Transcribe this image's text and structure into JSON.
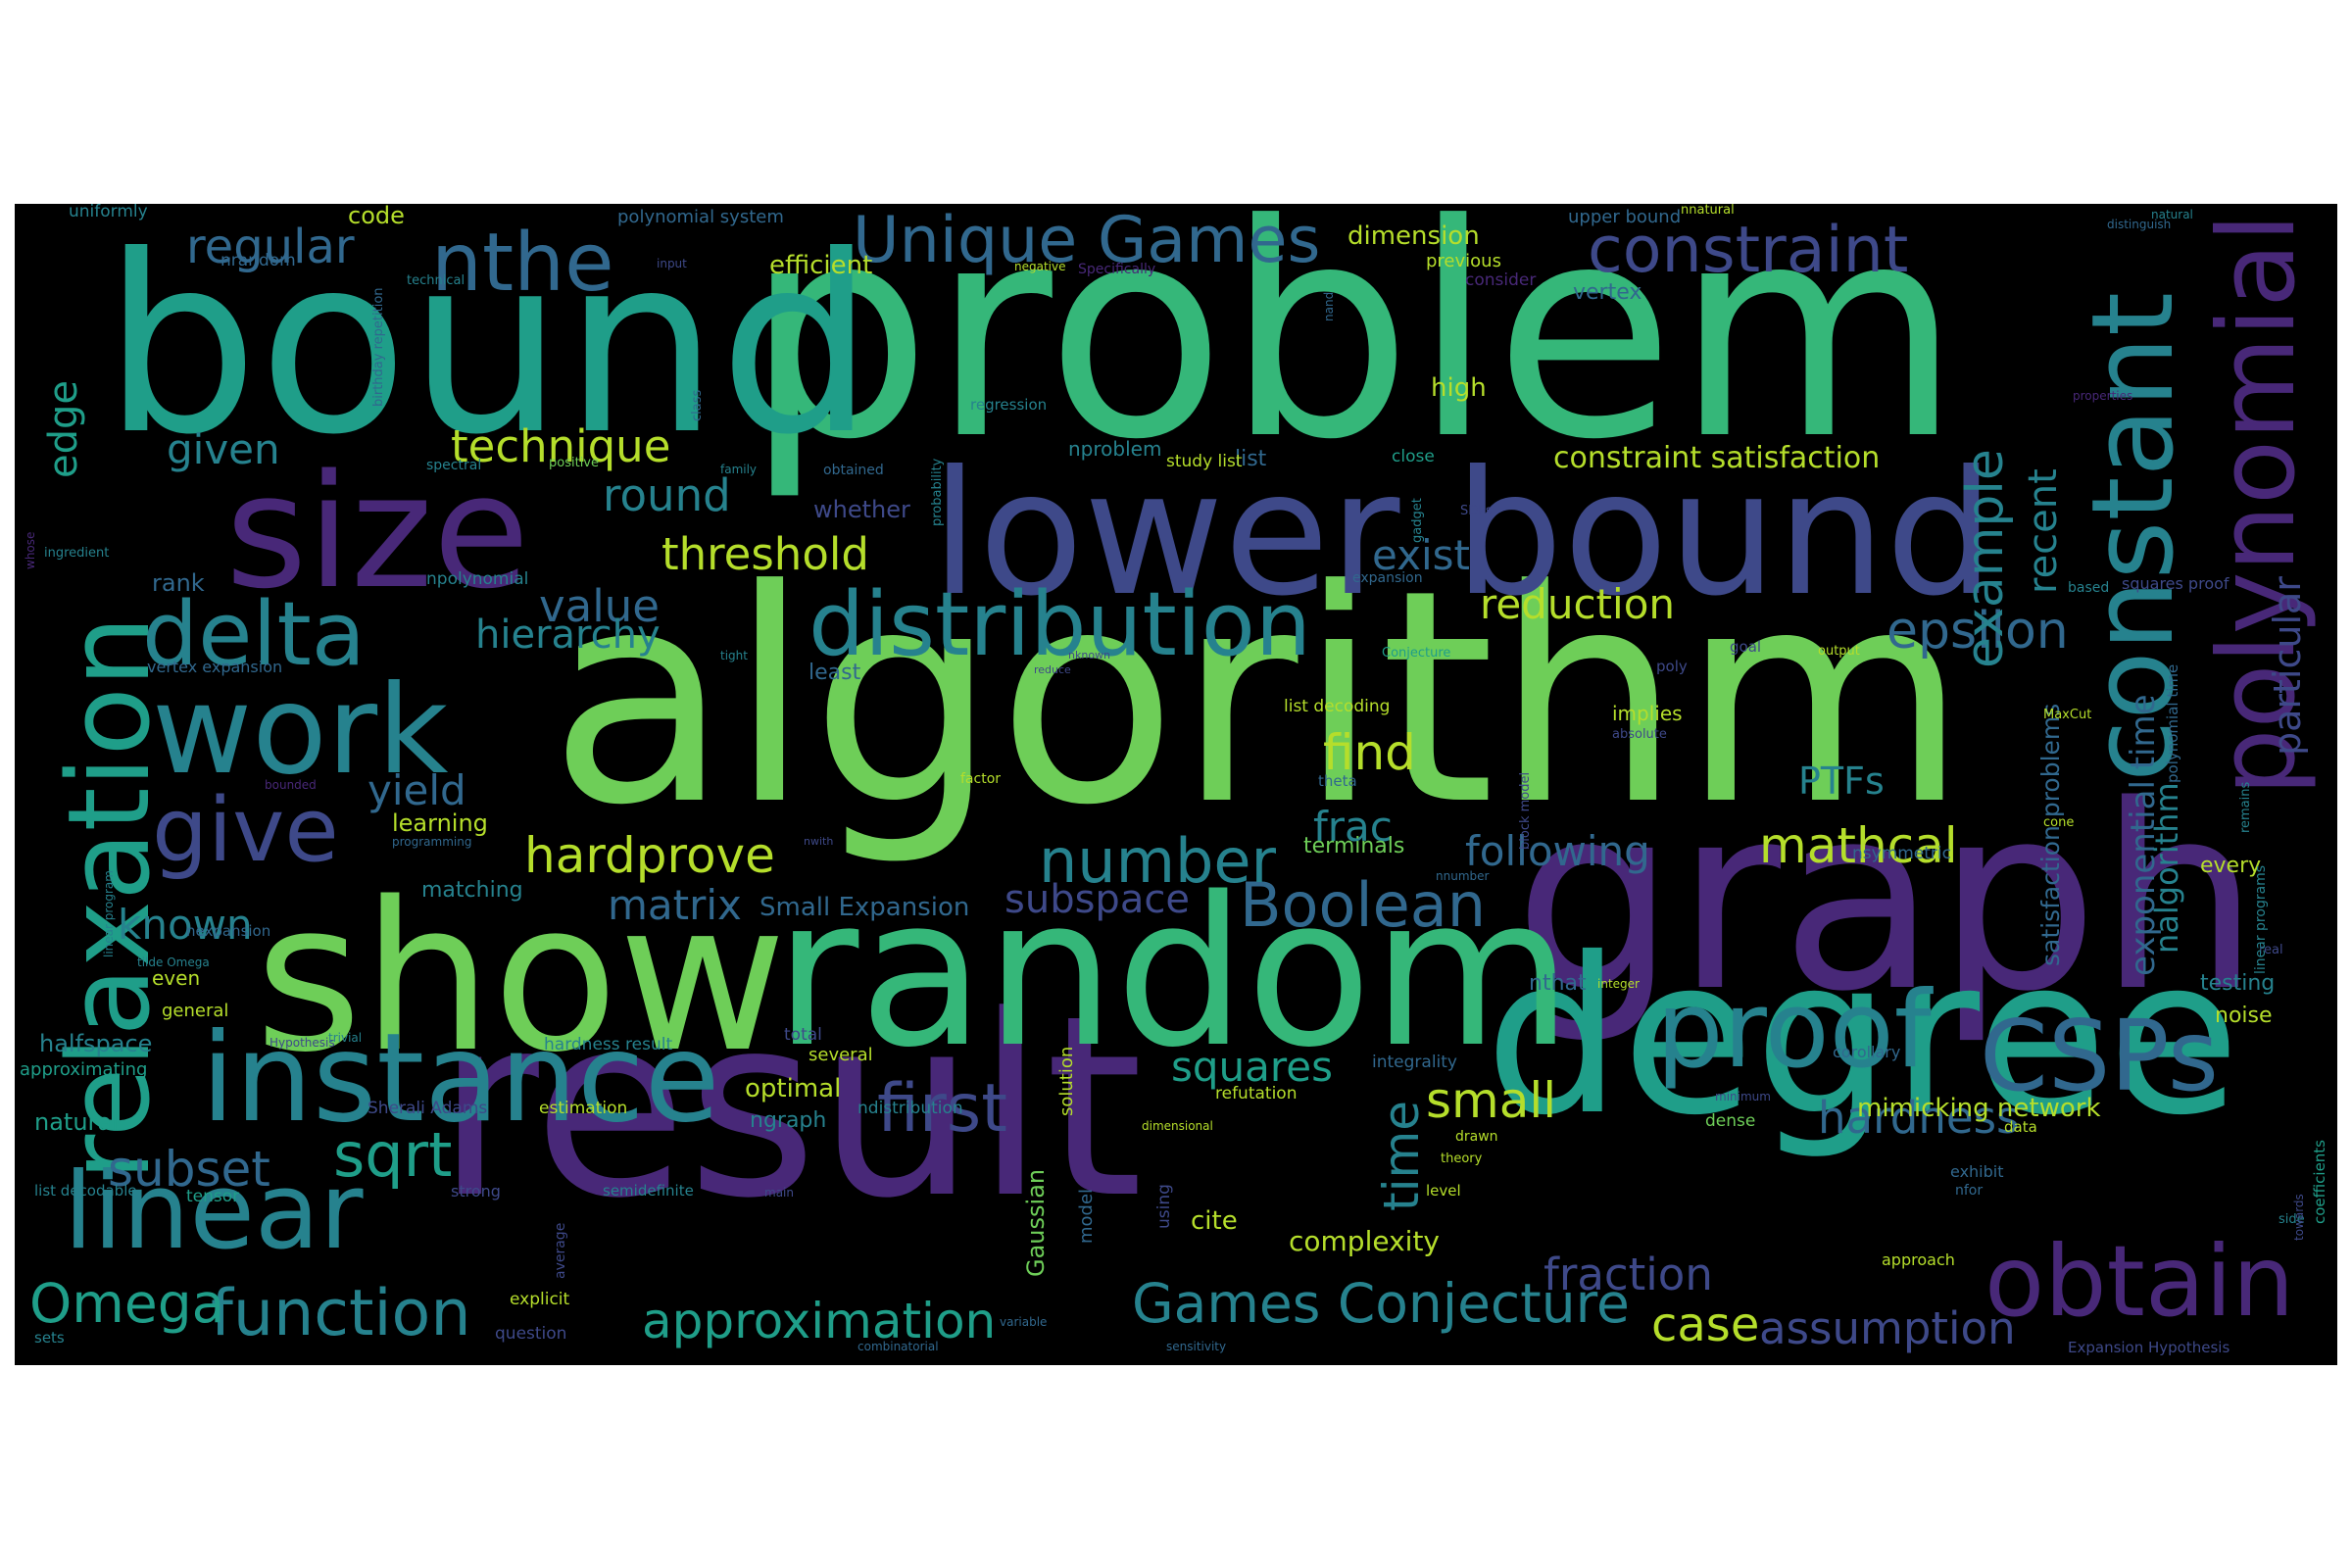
{
  "palette": {
    "background": "#000000",
    "figure_background": "#ffffff",
    "colors": [
      "#440154",
      "#482878",
      "#3e4989",
      "#31688e",
      "#26828e",
      "#1f9e89",
      "#35b779",
      "#6ece58",
      "#b5de2b"
    ]
  },
  "words": [
    {
      "text": "problem",
      "size": 1.0,
      "color": "#35b779"
    },
    {
      "text": "algorithm",
      "size": 0.96,
      "color": "#6ece58"
    },
    {
      "text": "graph",
      "size": 0.82,
      "color": "#482878"
    },
    {
      "text": "result",
      "size": 0.8,
      "color": "#482878"
    },
    {
      "text": "bound",
      "size": 0.78,
      "color": "#1f9e89"
    },
    {
      "text": "degree",
      "size": 0.7,
      "color": "#1f9e89"
    },
    {
      "text": "random",
      "size": 0.68,
      "color": "#35b779"
    },
    {
      "text": "show",
      "size": 0.68,
      "color": "#6ece58"
    },
    {
      "text": "lower bound",
      "size": 0.55,
      "color": "#3e4989"
    },
    {
      "text": "size",
      "size": 0.5,
      "color": "#482878"
    },
    {
      "text": "instance",
      "size": 0.4,
      "color": "#26828e"
    },
    {
      "text": "work",
      "size": 0.4,
      "color": "#26828e"
    },
    {
      "text": "relaxation",
      "size": 0.36,
      "color": "#1f9e89"
    },
    {
      "text": "constant",
      "size": 0.36,
      "color": "#26828e"
    },
    {
      "text": "polynomial",
      "size": 0.34,
      "color": "#482878"
    },
    {
      "text": "proof",
      "size": 0.34,
      "color": "#26828e"
    },
    {
      "text": "linear",
      "size": 0.34,
      "color": "#26828e"
    },
    {
      "text": "CSPs",
      "size": 0.32,
      "color": "#31688e"
    },
    {
      "text": "obtain",
      "size": 0.32,
      "color": "#482878"
    },
    {
      "text": "distribution",
      "size": 0.28,
      "color": "#26828e"
    },
    {
      "text": "delta",
      "size": 0.28,
      "color": "#26828e"
    },
    {
      "text": "give",
      "size": 0.28,
      "color": "#3e4989"
    },
    {
      "text": "nthe",
      "size": 0.26,
      "color": "#31688e"
    },
    {
      "text": "first",
      "size": 0.22,
      "color": "#3e4989"
    },
    {
      "text": "function",
      "size": 0.22,
      "color": "#26828e"
    },
    {
      "text": "Unique Games",
      "size": 0.22,
      "color": "#31688e"
    },
    {
      "text": "constraint",
      "size": 0.22,
      "color": "#3e4989"
    },
    {
      "text": "sqrt",
      "size": 0.22,
      "color": "#1f9e89"
    },
    {
      "text": "Boolean",
      "size": 0.22,
      "color": "#31688e"
    },
    {
      "text": "number",
      "size": 0.22,
      "color": "#26828e"
    },
    {
      "text": "Games Conjecture",
      "size": 0.2,
      "color": "#26828e"
    },
    {
      "text": "Omega",
      "size": 0.2,
      "color": "#1f9e89"
    },
    {
      "text": "approximation",
      "size": 0.18,
      "color": "#1f9e89"
    },
    {
      "text": "mathcal",
      "size": 0.18,
      "color": "#b5de2b"
    },
    {
      "text": "hardprove",
      "size": 0.18,
      "color": "#b5de2b"
    },
    {
      "text": "subset",
      "size": 0.18,
      "color": "#31688e"
    },
    {
      "text": "time",
      "size": 0.18,
      "color": "#26828e"
    },
    {
      "text": "find",
      "size": 0.18,
      "color": "#b5de2b"
    },
    {
      "text": "small",
      "size": 0.18,
      "color": "#b5de2b"
    },
    {
      "text": "case",
      "size": 0.18,
      "color": "#b5de2b"
    },
    {
      "text": "fraction",
      "size": 0.18,
      "color": "#3e4989"
    },
    {
      "text": "hardness",
      "size": 0.18,
      "color": "#31688e"
    },
    {
      "text": "epsilon",
      "size": 0.18,
      "color": "#31688e"
    },
    {
      "text": "assumption",
      "size": 0.18,
      "color": "#3e4989"
    },
    {
      "text": "example",
      "size": 0.18,
      "color": "#26828e"
    },
    {
      "text": "squares",
      "size": 0.16,
      "color": "#1f9e89"
    },
    {
      "text": "threshold",
      "size": 0.16,
      "color": "#b5de2b"
    },
    {
      "text": "technique",
      "size": 0.16,
      "color": "#b5de2b"
    },
    {
      "text": "value",
      "size": 0.16,
      "color": "#31688e"
    },
    {
      "text": "hierarchy",
      "size": 0.16,
      "color": "#26828e"
    },
    {
      "text": "round",
      "size": 0.16,
      "color": "#26828e"
    },
    {
      "text": "regular",
      "size": 0.16,
      "color": "#31688e"
    },
    {
      "text": "given",
      "size": 0.16,
      "color": "#26828e"
    },
    {
      "text": "edge",
      "size": 0.16,
      "color": "#1f9e89"
    },
    {
      "text": "known",
      "size": 0.16,
      "color": "#26828e"
    },
    {
      "text": "matrix",
      "size": 0.16,
      "color": "#31688e"
    },
    {
      "text": "subspace",
      "size": 0.16,
      "color": "#3e4989"
    },
    {
      "text": "following",
      "size": 0.16,
      "color": "#31688e"
    },
    {
      "text": "reduction",
      "size": 0.16,
      "color": "#b5de2b"
    },
    {
      "text": "exist",
      "size": 0.16,
      "color": "#31688e"
    },
    {
      "text": "yield",
      "size": 0.16,
      "color": "#31688e"
    },
    {
      "text": "frac",
      "size": 0.16,
      "color": "#26828e"
    },
    {
      "text": "PTFs",
      "size": 0.16,
      "color": "#26828e"
    },
    {
      "text": "recent",
      "size": 0.16,
      "color": "#26828e"
    },
    {
      "text": "particular",
      "size": 0.16,
      "color": "#3e4989"
    },
    {
      "text": "exponential time",
      "size": 0.14,
      "color": "#31688e"
    },
    {
      "text": "nalgorithm",
      "size": 0.14,
      "color": "#26828e"
    },
    {
      "text": "constraint satisfaction",
      "size": 0.12,
      "color": "#b5de2b"
    },
    {
      "text": "satisfaction problems",
      "size": 0.1,
      "color": "#31688e"
    },
    {
      "text": "Small Expansion",
      "size": 0.11,
      "color": "#31688e"
    },
    {
      "text": "mimicking network",
      "size": 0.1,
      "color": "#b5de2b"
    },
    {
      "text": "complexity",
      "size": 0.1,
      "color": "#b5de2b"
    },
    {
      "text": "dimension",
      "size": 0.1,
      "color": "#b5de2b"
    },
    {
      "text": "efficient",
      "size": 0.1,
      "color": "#b5de2b"
    },
    {
      "text": "optimal",
      "size": 0.1,
      "color": "#b5de2b"
    },
    {
      "text": "learning",
      "size": 0.1,
      "color": "#b5de2b"
    },
    {
      "text": "natural",
      "size": 0.1,
      "color": "#1f9e89"
    },
    {
      "text": "halfspace",
      "size": 0.1,
      "color": "#26828e"
    },
    {
      "text": "rank",
      "size": 0.1,
      "color": "#31688e"
    },
    {
      "text": "code",
      "size": 0.1,
      "color": "#b5de2b"
    },
    {
      "text": "high",
      "size": 0.1,
      "color": "#b5de2b"
    },
    {
      "text": "cite",
      "size": 0.1,
      "color": "#b5de2b"
    },
    {
      "text": "Gaussian",
      "size": 0.1,
      "color": "#6ece58"
    },
    {
      "text": "ngraph",
      "size": 0.09,
      "color": "#26828e"
    },
    {
      "text": "nproblem",
      "size": 0.09,
      "color": "#26828e"
    },
    {
      "text": "whether",
      "size": 0.1,
      "color": "#3e4989"
    },
    {
      "text": "least",
      "size": 0.09,
      "color": "#31688e"
    },
    {
      "text": "testing",
      "size": 0.09,
      "color": "#26828e"
    },
    {
      "text": "noise",
      "size": 0.09,
      "color": "#b5de2b"
    },
    {
      "text": "every",
      "size": 0.09,
      "color": "#b5de2b"
    },
    {
      "text": "implies",
      "size": 0.09,
      "color": "#b5de2b"
    },
    {
      "text": "matching",
      "size": 0.09,
      "color": "#26828e"
    },
    {
      "text": "polynomial system",
      "size": 0.08,
      "color": "#31688e"
    },
    {
      "text": "upper bound",
      "size": 0.08,
      "color": "#31688e"
    },
    {
      "text": "uniformly",
      "size": 0.08,
      "color": "#26828e"
    },
    {
      "text": "vertex",
      "size": 0.09,
      "color": "#31688e"
    },
    {
      "text": "previous",
      "size": 0.08,
      "color": "#b5de2b"
    },
    {
      "text": "consider",
      "size": 0.08,
      "color": "#482878"
    },
    {
      "text": "tensor",
      "size": 0.08,
      "color": "#1f9e89"
    },
    {
      "text": "even",
      "size": 0.08,
      "color": "#b5de2b"
    },
    {
      "text": "close",
      "size": 0.08,
      "color": "#1f9e89"
    },
    {
      "text": "list",
      "size": 0.1,
      "color": "#31688e"
    },
    {
      "text": "study list",
      "size": 0.08,
      "color": "#b5de2b"
    },
    {
      "text": "nrandom",
      "size": 0.08,
      "color": "#31688e"
    },
    {
      "text": "general",
      "size": 0.08,
      "color": "#b5de2b"
    },
    {
      "text": "approximating",
      "size": 0.08,
      "color": "#1f9e89"
    },
    {
      "text": "several",
      "size": 0.08,
      "color": "#b5de2b"
    },
    {
      "text": "total",
      "size": 0.08,
      "color": "#3e4989"
    },
    {
      "text": "hardness result",
      "size": 0.08,
      "color": "#26828e"
    },
    {
      "text": "Sherali Adams",
      "size": 0.08,
      "color": "#3e4989"
    },
    {
      "text": "estimation",
      "size": 0.08,
      "color": "#b5de2b"
    },
    {
      "text": "ndistribution",
      "size": 0.08,
      "color": "#26828e"
    },
    {
      "text": "terminals",
      "size": 0.08,
      "color": "#6ece58"
    },
    {
      "text": "nthat",
      "size": 0.08,
      "color": "#31688e"
    },
    {
      "text": "dense",
      "size": 0.08,
      "color": "#6ece58"
    },
    {
      "text": "integrality",
      "size": 0.07,
      "color": "#31688e"
    },
    {
      "text": "refutation",
      "size": 0.07,
      "color": "#b5de2b"
    },
    {
      "text": "explicit",
      "size": 0.07,
      "color": "#b5de2b"
    },
    {
      "text": "question",
      "size": 0.07,
      "color": "#3e4989"
    },
    {
      "text": "sets",
      "size": 0.07,
      "color": "#26828e"
    },
    {
      "text": "level",
      "size": 0.07,
      "color": "#b5de2b"
    },
    {
      "text": "approach",
      "size": 0.07,
      "color": "#b5de2b"
    },
    {
      "text": "Expansion Hypothesis",
      "size": 0.07,
      "color": "#3e4989"
    },
    {
      "text": "list decodable",
      "size": 0.07,
      "color": "#26828e"
    },
    {
      "text": "list decoding",
      "size": 0.07,
      "color": "#b5de2b"
    },
    {
      "text": "npolynomial",
      "size": 0.07,
      "color": "#26828e"
    },
    {
      "text": "nexpansion",
      "size": 0.07,
      "color": "#31688e"
    },
    {
      "text": "vertex expansion",
      "size": 0.07,
      "color": "#31688e"
    },
    {
      "text": "squares proof",
      "size": 0.07,
      "color": "#3e4989"
    },
    {
      "text": "nsymmetric",
      "size": 0.07,
      "color": "#31688e"
    },
    {
      "text": "corollary",
      "size": 0.07,
      "color": "#31688e"
    },
    {
      "text": "solution",
      "size": 0.08,
      "color": "#b5de2b"
    },
    {
      "text": "model",
      "size": 0.08,
      "color": "#31688e"
    },
    {
      "text": "using",
      "size": 0.07,
      "color": "#3e4989"
    },
    {
      "text": "data",
      "size": 0.07,
      "color": "#b5de2b"
    },
    {
      "text": "exhibit",
      "size": 0.07,
      "color": "#31688e"
    },
    {
      "text": "nfor",
      "size": 0.06,
      "color": "#31688e"
    },
    {
      "text": "side",
      "size": 0.06,
      "color": "#26828e"
    },
    {
      "text": "real",
      "size": 0.06,
      "color": "#3e4989"
    },
    {
      "text": "cone",
      "size": 0.06,
      "color": "#b5de2b"
    },
    {
      "text": "MaxCut",
      "size": 0.06,
      "color": "#b5de2b"
    },
    {
      "text": "absolute",
      "size": 0.06,
      "color": "#3e4989"
    },
    {
      "text": "theta",
      "size": 0.06,
      "color": "#31688e"
    },
    {
      "text": "factor",
      "size": 0.06,
      "color": "#b5de2b"
    },
    {
      "text": "goal",
      "size": 0.06,
      "color": "#3e4989"
    },
    {
      "text": "output",
      "size": 0.06,
      "color": "#b5de2b"
    },
    {
      "text": "poly",
      "size": 0.06,
      "color": "#3e4989"
    },
    {
      "text": "based",
      "size": 0.06,
      "color": "#26828e"
    },
    {
      "text": "expansion",
      "size": 0.06,
      "color": "#31688e"
    },
    {
      "text": "SDPs",
      "size": 0.06,
      "color": "#3e4989"
    },
    {
      "text": "Conjecture",
      "size": 0.06,
      "color": "#1f9e89"
    },
    {
      "text": "obtained",
      "size": 0.06,
      "color": "#31688e"
    },
    {
      "text": "spectral",
      "size": 0.06,
      "color": "#26828e"
    },
    {
      "text": "positive",
      "size": 0.06,
      "color": "#6ece58"
    },
    {
      "text": "regression",
      "size": 0.06,
      "color": "#26828e"
    },
    {
      "text": "technical",
      "size": 0.06,
      "color": "#26828e"
    },
    {
      "text": "input",
      "size": 0.06,
      "color": "#3e4989"
    },
    {
      "text": "negative",
      "size": 0.06,
      "color": "#b5de2b"
    },
    {
      "text": "Specifically",
      "size": 0.06,
      "color": "#482878"
    },
    {
      "text": "natural",
      "size": 0.05,
      "color": "#26828e"
    },
    {
      "text": "distinguish",
      "size": 0.05,
      "color": "#31688e"
    },
    {
      "text": "properties",
      "size": 0.05,
      "color": "#482878"
    },
    {
      "text": "ingredient",
      "size": 0.06,
      "color": "#26828e"
    },
    {
      "text": "whose",
      "size": 0.06,
      "color": "#482878"
    },
    {
      "text": "tight",
      "size": 0.06,
      "color": "#26828e"
    },
    {
      "text": "linear program",
      "size": 0.06,
      "color": "#26828e"
    },
    {
      "text": "bounded",
      "size": 0.06,
      "color": "#482878"
    },
    {
      "text": "programming",
      "size": 0.06,
      "color": "#31688e"
    },
    {
      "text": "tilde Omega",
      "size": 0.06,
      "color": "#26828e"
    },
    {
      "text": "Hypothesis",
      "size": 0.05,
      "color": "#3e4989"
    },
    {
      "text": "trivial",
      "size": 0.05,
      "color": "#26828e"
    },
    {
      "text": "strong",
      "size": 0.06,
      "color": "#3e4989"
    },
    {
      "text": "semidefinite",
      "size": 0.06,
      "color": "#26828e"
    },
    {
      "text": "main",
      "size": 0.05,
      "color": "#3e4989"
    },
    {
      "text": "average",
      "size": 0.05,
      "color": "#3e4989"
    },
    {
      "text": "combinatorial",
      "size": 0.05,
      "color": "#31688e"
    },
    {
      "text": "variable",
      "size": 0.05,
      "color": "#31688e"
    },
    {
      "text": "sensitivity",
      "size": 0.05,
      "color": "#31688e"
    },
    {
      "text": "dimensional",
      "size": 0.05,
      "color": "#b5de2b"
    },
    {
      "text": "minimum",
      "size": 0.05,
      "color": "#3e4989"
    },
    {
      "text": "drawn",
      "size": 0.05,
      "color": "#b5de2b"
    },
    {
      "text": "theory",
      "size": 0.05,
      "color": "#b5de2b"
    },
    {
      "text": "integer",
      "size": 0.05,
      "color": "#b5de2b"
    },
    {
      "text": "nnumber",
      "size": 0.05,
      "color": "#31688e"
    },
    {
      "text": "nwith",
      "size": 0.05,
      "color": "#3e4989"
    },
    {
      "text": "reduce",
      "size": 0.05,
      "color": "#3e4989"
    },
    {
      "text": "nknown",
      "size": 0.05,
      "color": "#3e4989"
    },
    {
      "text": "block model",
      "size": 0.05,
      "color": "#3e4989"
    },
    {
      "text": "probability",
      "size": 0.05,
      "color": "#26828e"
    },
    {
      "text": "class",
      "size": 0.05,
      "color": "#31688e"
    },
    {
      "text": "family",
      "size": 0.05,
      "color": "#26828e"
    },
    {
      "text": "gadget",
      "size": 0.05,
      "color": "#26828e"
    },
    {
      "text": "nand",
      "size": 0.05,
      "color": "#31688e"
    },
    {
      "text": "nnatural",
      "size": 0.05,
      "color": "#b5de2b"
    },
    {
      "text": "polynomial time",
      "size": 0.06,
      "color": "#31688e"
    },
    {
      "text": "remains",
      "size": 0.05,
      "color": "#26828e"
    },
    {
      "text": "linear programs",
      "size": 0.05,
      "color": "#26828e"
    },
    {
      "text": "towards",
      "size": 0.05,
      "color": "#3e4989"
    },
    {
      "text": "coefficients",
      "size": 0.05,
      "color": "#1f9e89"
    },
    {
      "text": "birthday repetition",
      "size": 0.05,
      "color": "#31688e"
    }
  ]
}
